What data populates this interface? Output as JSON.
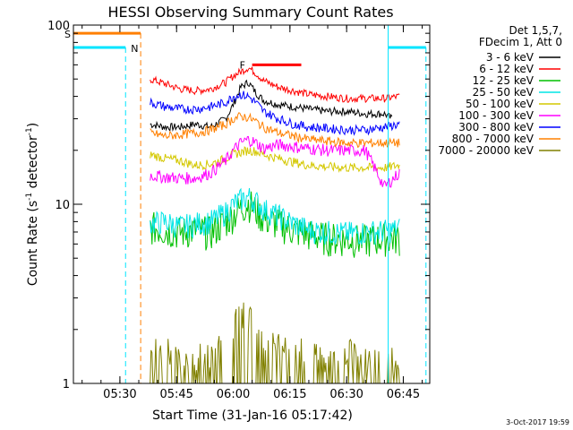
{
  "chart_data": {
    "type": "line",
    "title": "HESSI Observing Summary Count Rates",
    "xlabel": "Start Time (31-Jan-16 05:17:42)",
    "ylabel": "Count Rate (s",
    "ylabel_sup": "-1",
    "ylabel_rest": " detector",
    "ylabel_sup2": "-1",
    "ylabel_close": ")",
    "yscale": "log",
    "ylim": [
      1,
      100
    ],
    "xlim_minutes": [
      "05:17:42",
      "06:52:00"
    ],
    "x_ticks": [
      "05:30",
      "05:45",
      "06:00",
      "06:15",
      "06:30",
      "06:45"
    ],
    "y_ticks": [
      "1",
      "10",
      "100"
    ],
    "legend_header": [
      "Det 1,5,7,",
      "FDecim 1, Att 0"
    ],
    "legend_placement": "right",
    "timestamp": "3-Oct-2017 19:59",
    "flags": {
      "S": {
        "label": "S",
        "color": "#ff7f00",
        "end": "05:35:30",
        "level": 90
      },
      "N": {
        "label": "N",
        "color": "#00e5ff",
        "start_end": [
          "05:17:42",
          "05:31:30",
          "06:41:00",
          "06:51:00"
        ],
        "level": 75
      },
      "F": {
        "label": "F",
        "color": "#ff0000",
        "range": [
          "06:05:00",
          "06:18:00"
        ],
        "level": 60
      }
    },
    "series": [
      {
        "name": "3 - 6 keV",
        "color": "#000000",
        "points": [
          [
            "05:38",
            28
          ],
          [
            "05:42",
            27
          ],
          [
            "05:46",
            27
          ],
          [
            "05:50",
            28
          ],
          [
            "05:54",
            27
          ],
          [
            "05:58",
            30
          ],
          [
            "06:00",
            36
          ],
          [
            "06:02",
            45
          ],
          [
            "06:04",
            48
          ],
          [
            "06:06",
            42
          ],
          [
            "06:08",
            38
          ],
          [
            "06:12",
            36
          ],
          [
            "06:16",
            35
          ],
          [
            "06:20",
            34
          ],
          [
            "06:25",
            33
          ],
          [
            "06:30",
            33
          ],
          [
            "06:35",
            32
          ],
          [
            "06:40",
            32
          ],
          [
            "06:42",
            30
          ]
        ]
      },
      {
        "name": "6 - 12 keV",
        "color": "#ff0000",
        "points": [
          [
            "05:38",
            50
          ],
          [
            "05:42",
            47
          ],
          [
            "05:46",
            44
          ],
          [
            "05:50",
            43
          ],
          [
            "05:54",
            44
          ],
          [
            "05:58",
            48
          ],
          [
            "06:00",
            52
          ],
          [
            "06:02",
            55
          ],
          [
            "06:04",
            58
          ],
          [
            "06:06",
            54
          ],
          [
            "06:08",
            49
          ],
          [
            "06:12",
            45
          ],
          [
            "06:16",
            43
          ],
          [
            "06:20",
            41
          ],
          [
            "06:25",
            40
          ],
          [
            "06:30",
            39
          ],
          [
            "06:35",
            39
          ],
          [
            "06:40",
            39
          ],
          [
            "06:44",
            40
          ]
        ]
      },
      {
        "name": "12 - 25 keV",
        "color": "#00c000",
        "points": [
          [
            "05:38",
            7.5
          ],
          [
            "05:42",
            7.2
          ],
          [
            "05:46",
            7.0
          ],
          [
            "05:50",
            7.2
          ],
          [
            "05:54",
            7.0
          ],
          [
            "05:58",
            8.0
          ],
          [
            "06:00",
            8.8
          ],
          [
            "06:02",
            9.5
          ],
          [
            "06:04",
            10.2
          ],
          [
            "06:06",
            9.3
          ],
          [
            "06:08",
            8.4
          ],
          [
            "06:12",
            7.8
          ],
          [
            "06:16",
            7.2
          ],
          [
            "06:20",
            6.8
          ],
          [
            "06:25",
            6.5
          ],
          [
            "06:30",
            6.4
          ],
          [
            "06:35",
            6.3
          ],
          [
            "06:40",
            6.5
          ],
          [
            "06:44",
            6.5
          ]
        ]
      },
      {
        "name": "25 - 50 keV",
        "color": "#00e5e5",
        "points": [
          [
            "05:38",
            7.8
          ],
          [
            "05:42",
            8.0
          ],
          [
            "05:46",
            7.5
          ],
          [
            "05:50",
            7.8
          ],
          [
            "05:54",
            8.0
          ],
          [
            "05:58",
            9.0
          ],
          [
            "06:00",
            10.0
          ],
          [
            "06:02",
            10.6
          ],
          [
            "06:04",
            11.0
          ],
          [
            "06:06",
            10.4
          ],
          [
            "06:08",
            9.4
          ],
          [
            "06:12",
            8.6
          ],
          [
            "06:16",
            7.8
          ],
          [
            "06:20",
            7.2
          ],
          [
            "06:25",
            7.0
          ],
          [
            "06:30",
            6.9
          ],
          [
            "06:35",
            7.0
          ],
          [
            "06:40",
            7.1
          ],
          [
            "06:44",
            7.3
          ]
        ]
      },
      {
        "name": "50 - 100 keV",
        "color": "#d4c800",
        "points": [
          [
            "05:38",
            19
          ],
          [
            "05:42",
            18
          ],
          [
            "05:46",
            17.5
          ],
          [
            "05:50",
            16.5
          ],
          [
            "05:54",
            16.8
          ],
          [
            "05:58",
            18
          ],
          [
            "06:00",
            19
          ],
          [
            "06:02",
            19.5
          ],
          [
            "06:04",
            20
          ],
          [
            "06:06",
            19.8
          ],
          [
            "06:08",
            19
          ],
          [
            "06:12",
            18
          ],
          [
            "06:16",
            17.2
          ],
          [
            "06:20",
            16.5
          ],
          [
            "06:25",
            16.2
          ],
          [
            "06:30",
            16.0
          ],
          [
            "06:35",
            16.0
          ],
          [
            "06:40",
            16.0
          ],
          [
            "06:44",
            16.5
          ]
        ]
      },
      {
        "name": "100 - 300 keV",
        "color": "#ff00ff",
        "points": [
          [
            "05:38",
            14.5
          ],
          [
            "05:42",
            14.2
          ],
          [
            "05:46",
            14.0
          ],
          [
            "05:50",
            14.0
          ],
          [
            "05:54",
            15.0
          ],
          [
            "05:58",
            17.5
          ],
          [
            "06:00",
            20
          ],
          [
            "06:02",
            22
          ],
          [
            "06:04",
            23
          ],
          [
            "06:06",
            22
          ],
          [
            "06:08",
            20.5
          ],
          [
            "06:12",
            21.5
          ],
          [
            "06:16",
            21
          ],
          [
            "06:20",
            20.5
          ],
          [
            "06:25",
            20
          ],
          [
            "06:30",
            20
          ],
          [
            "06:35",
            20
          ],
          [
            "06:40",
            12.5
          ],
          [
            "06:44",
            15
          ]
        ]
      },
      {
        "name": "300 - 800 keV",
        "color": "#0000ff",
        "points": [
          [
            "05:38",
            37
          ],
          [
            "05:42",
            35
          ],
          [
            "05:46",
            34
          ],
          [
            "05:50",
            34
          ],
          [
            "05:54",
            35
          ],
          [
            "05:58",
            37
          ],
          [
            "06:00",
            40
          ],
          [
            "06:02",
            41
          ],
          [
            "06:04",
            40
          ],
          [
            "06:06",
            37
          ],
          [
            "06:08",
            33
          ],
          [
            "06:12",
            30
          ],
          [
            "06:16",
            28
          ],
          [
            "06:20",
            27
          ],
          [
            "06:25",
            26.5
          ],
          [
            "06:30",
            26
          ],
          [
            "06:35",
            26
          ],
          [
            "06:40",
            27
          ],
          [
            "06:44",
            28
          ]
        ]
      },
      {
        "name": "800 - 7000 keV",
        "color": "#ff8000",
        "points": [
          [
            "05:38",
            25
          ],
          [
            "05:42",
            24
          ],
          [
            "05:46",
            24.5
          ],
          [
            "05:50",
            25
          ],
          [
            "05:54",
            26
          ],
          [
            "05:58",
            28
          ],
          [
            "06:00",
            30
          ],
          [
            "06:02",
            31
          ],
          [
            "06:04",
            30.5
          ],
          [
            "06:06",
            29
          ],
          [
            "06:08",
            27
          ],
          [
            "06:12",
            25
          ],
          [
            "06:16",
            24
          ],
          [
            "06:20",
            23
          ],
          [
            "06:25",
            22.5
          ],
          [
            "06:30",
            22
          ],
          [
            "06:35",
            22
          ],
          [
            "06:40",
            22
          ],
          [
            "06:44",
            22
          ]
        ]
      },
      {
        "name": "7000 - 20000 keV",
        "color": "#808000",
        "points": [
          [
            "05:38",
            1.2
          ],
          [
            "05:42",
            1.2
          ],
          [
            "05:46",
            1.2
          ],
          [
            "05:50",
            1.1
          ],
          [
            "05:54",
            1.2
          ],
          [
            "05:58",
            1.3
          ],
          [
            "06:00",
            1.6
          ],
          [
            "06:02",
            2.0
          ],
          [
            "06:04",
            1.9
          ],
          [
            "06:06",
            1.5
          ],
          [
            "06:08",
            1.3
          ],
          [
            "06:12",
            1.3
          ],
          [
            "06:16",
            1.2
          ],
          [
            "06:20",
            1.2
          ],
          [
            "06:25",
            1.1
          ],
          [
            "06:30",
            1.2
          ],
          [
            "06:35",
            1.1
          ],
          [
            "06:40",
            1.2
          ],
          [
            "06:44",
            1.1
          ]
        ]
      }
    ]
  }
}
